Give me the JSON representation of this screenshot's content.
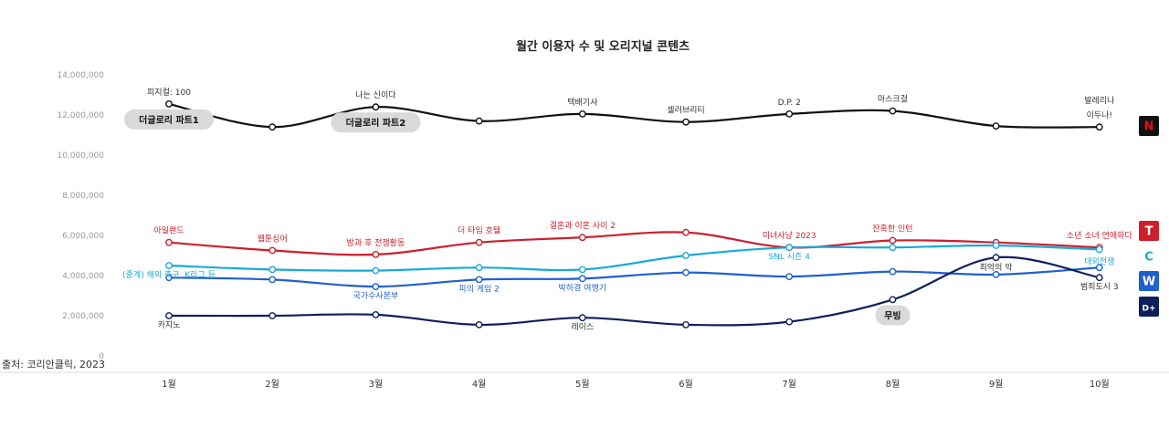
{
  "chart_data": {
    "type": "line",
    "title": "월간 이용자 수 및 오리지널 콘텐츠",
    "source": "출처: 코리안클릭, 2023",
    "categories": [
      "1월",
      "2월",
      "3월",
      "4월",
      "5월",
      "6월",
      "7월",
      "8월",
      "9월",
      "10월"
    ],
    "ylim": [
      0,
      14000000
    ],
    "y_ticks": [
      2000000,
      4000000,
      6000000,
      8000000,
      10000000,
      12000000,
      14000000
    ],
    "y_tick_labels": [
      "2,000,000",
      "4,000,000",
      "6,000,000",
      "8,000,000",
      "10,000,000",
      "12,000,000",
      "14,000,000"
    ],
    "y_zero_label": "0",
    "series": [
      {
        "name": "Netflix",
        "logo": "N",
        "color": "#111111",
        "label_color": "#333333",
        "values": [
          12550000,
          11400000,
          12400000,
          11700000,
          12050000,
          11650000,
          12050000,
          12200000,
          11450000,
          11400000
        ],
        "labels": [
          "피지컬: 100",
          "",
          "나는 신이다",
          "",
          "택배기사",
          "셀러브리티",
          "D.P. 2",
          "마스크걸",
          "",
          "발레리나 이두나!"
        ],
        "pills": [
          {
            "index": 0,
            "text": "더글로리 파트1"
          },
          {
            "index": 2,
            "text": "더글로리 파트2"
          }
        ]
      },
      {
        "name": "Tving",
        "logo": "T",
        "color": "#cc1f2b",
        "label_color": "#cc1f2b",
        "values": [
          5650000,
          5250000,
          5050000,
          5650000,
          5900000,
          6150000,
          5400000,
          5750000,
          5650000,
          5400000
        ],
        "labels": [
          "아일랜드",
          "웹툰싱어",
          "방과 후 전쟁활동",
          "더 타임 호텔",
          "결혼과 이혼 사이 2",
          "",
          "미녀사냥 2023",
          "잔혹한 인턴",
          "",
          "소년 소녀 연애하다"
        ]
      },
      {
        "name": "Coupang Play",
        "logo": "C",
        "color": "#1aa9d8",
        "label_color": "#1aa9d8",
        "values": [
          4500000,
          4300000,
          4250000,
          4400000,
          4300000,
          5000000,
          5400000,
          5400000,
          5500000,
          5300000
        ],
        "labels": [
          "(중계) 해외 축구, K리그 등",
          "",
          "",
          "",
          "",
          "",
          "SNL 시즌 4",
          "",
          "",
          "대외전쟁"
        ]
      },
      {
        "name": "Wavve",
        "logo": "W",
        "color": "#1f5fd0",
        "label_color": "#1f5fd0",
        "values": [
          3900000,
          3800000,
          3450000,
          3800000,
          3850000,
          4150000,
          3950000,
          4200000,
          4050000,
          4400000
        ],
        "labels": [
          "",
          "",
          "국가수사본부",
          "피의 게임 2",
          "박하경 여행기",
          "",
          "",
          "",
          "",
          ""
        ]
      },
      {
        "name": "Disney+",
        "logo": "D+",
        "color": "#0e1f5b",
        "label_color": "#333333",
        "values": [
          2000000,
          2000000,
          2050000,
          1550000,
          1900000,
          1550000,
          1700000,
          2800000,
          4900000,
          3900000
        ],
        "labels": [
          "카지노",
          "",
          "",
          "",
          "레이스",
          "",
          "",
          "",
          "최악의 악",
          "범죄도시 3"
        ],
        "pills": [
          {
            "index": 7,
            "text": "무빙"
          }
        ]
      }
    ]
  }
}
